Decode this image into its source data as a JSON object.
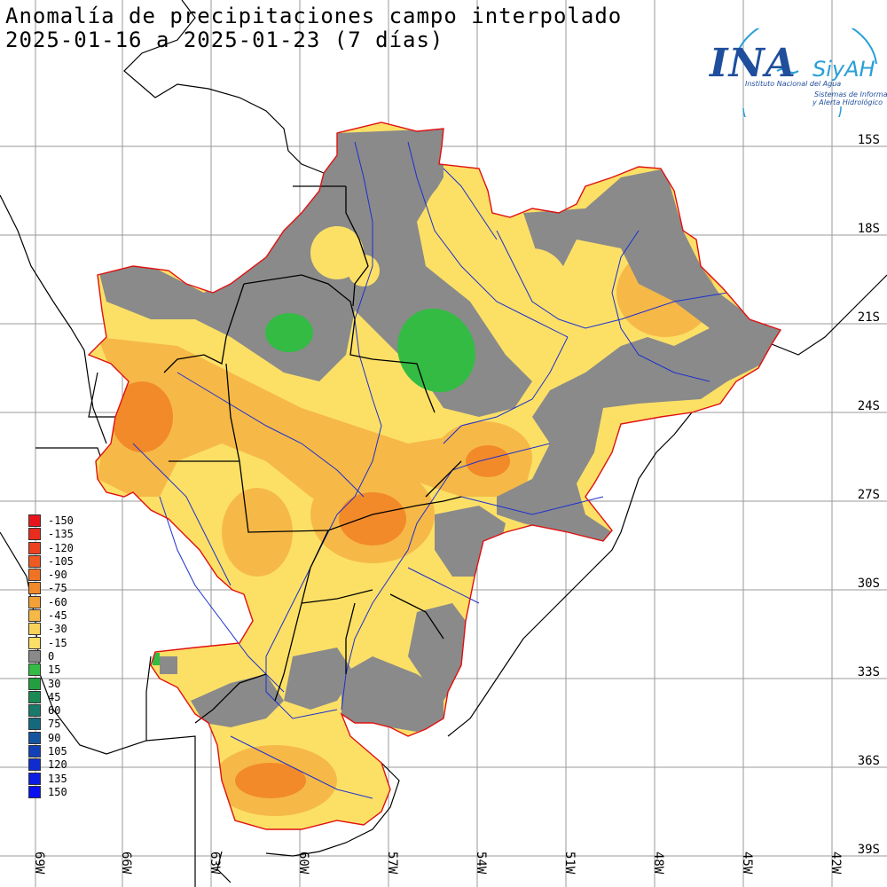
{
  "title": {
    "line1": "Anomalía de precipitaciones campo interpolado",
    "line2": "2025-01-16 a 2025-01-23 (7 días)"
  },
  "logo": {
    "name": "INA",
    "brand": "SiyAH",
    "line1": "Instituto Nacional del Agua",
    "line2": "Sistemas de Información",
    "line3": "y Alerta Hidrológico"
  },
  "lat_labels": [
    "15S",
    "18S",
    "21S",
    "24S",
    "27S",
    "30S",
    "33S",
    "36S",
    "39S"
  ],
  "lon_labels": [
    "69W",
    "66W",
    "63W",
    "60W",
    "57W",
    "54W",
    "51W",
    "48W",
    "45W",
    "42W"
  ],
  "legend": [
    {
      "label": "-150",
      "color": "#e8141c"
    },
    {
      "label": "-135",
      "color": "#ea2b1e"
    },
    {
      "label": "-120",
      "color": "#ec4220"
    },
    {
      "label": "-105",
      "color": "#ee5a22"
    },
    {
      "label": "-90",
      "color": "#f07324"
    },
    {
      "label": "-75",
      "color": "#f28a2a"
    },
    {
      "label": "-60",
      "color": "#f3a136"
    },
    {
      "label": "-45",
      "color": "#f6b947"
    },
    {
      "label": "-30",
      "color": "#f9d25a"
    },
    {
      "label": "-15",
      "color": "#fce066"
    },
    {
      "label": "0",
      "color": "#8a8a8a"
    },
    {
      "label": "15",
      "color": "#33bb44"
    },
    {
      "label": "30",
      "color": "#22a040"
    },
    {
      "label": "45",
      "color": "#1b8a55"
    },
    {
      "label": "60",
      "color": "#177a6a"
    },
    {
      "label": "75",
      "color": "#146a7c"
    },
    {
      "label": "90",
      "color": "#1555a0"
    },
    {
      "label": "105",
      "color": "#1240b8"
    },
    {
      "label": "120",
      "color": "#0f2cd0"
    },
    {
      "label": "135",
      "color": "#0c1ce2"
    },
    {
      "label": "150",
      "color": "#0a10f0"
    }
  ],
  "colors": {
    "grid": "#9a9a9a",
    "basin_outline": "#e01010",
    "rivers": "#1c2fd0",
    "borders": "#000000",
    "dry_light": "#fce066",
    "dry_mid": "#f6b947",
    "dry_strong": "#f28a2a",
    "neutral": "#8a8a8a",
    "wet": "#33bb44"
  }
}
